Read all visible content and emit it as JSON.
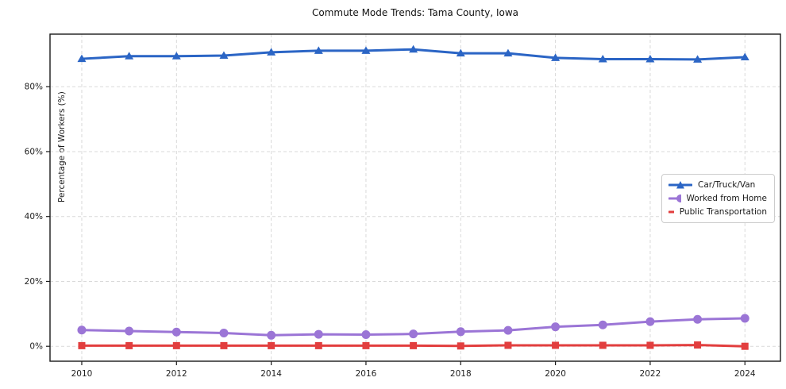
{
  "chart_data": {
    "type": "line",
    "title": "Commute Mode Trends: Tama County, Iowa",
    "xlabel": "",
    "ylabel": "Percentage of Workers (%)",
    "x": [
      2010,
      2011,
      2012,
      2013,
      2014,
      2015,
      2016,
      2017,
      2018,
      2019,
      2020,
      2021,
      2022,
      2023,
      2024
    ],
    "series": [
      {
        "name": "Car/Truck/Van",
        "color": "#2b65c5",
        "marker": "triangle",
        "values": [
          88.6,
          89.4,
          89.4,
          89.6,
          90.6,
          91.1,
          91.1,
          91.5,
          90.3,
          90.3,
          88.9,
          88.5,
          88.5,
          88.4,
          89.1
        ]
      },
      {
        "name": "Worked from Home",
        "color": "#9b75d6",
        "marker": "circle",
        "values": [
          5.0,
          4.7,
          4.4,
          4.1,
          3.4,
          3.7,
          3.6,
          3.8,
          4.5,
          4.9,
          6.0,
          6.6,
          7.6,
          8.3,
          8.6
        ]
      },
      {
        "name": "Public Transportation",
        "color": "#e23e3e",
        "marker": "square",
        "values": [
          0.2,
          0.2,
          0.2,
          0.2,
          0.2,
          0.2,
          0.2,
          0.2,
          0.1,
          0.3,
          0.3,
          0.3,
          0.3,
          0.4,
          0.0
        ]
      }
    ],
    "xticks": {
      "values": [
        2010,
        2012,
        2014,
        2016,
        2018,
        2020,
        2022,
        2024
      ],
      "labels": [
        "2010",
        "2012",
        "2014",
        "2016",
        "2018",
        "2020",
        "2022",
        "2024"
      ]
    },
    "yticks": {
      "values": [
        0,
        20,
        40,
        60,
        80
      ],
      "labels": [
        "0%",
        "20%",
        "40%",
        "60%",
        "80%"
      ]
    },
    "xlim": [
      2009.33,
      2024.75
    ],
    "ylim": [
      -4.6,
      96.2
    ],
    "grid": true,
    "grid_color": "#d9d9d9",
    "spine_color": "#1a1a1a",
    "legend_position": "center-right"
  }
}
